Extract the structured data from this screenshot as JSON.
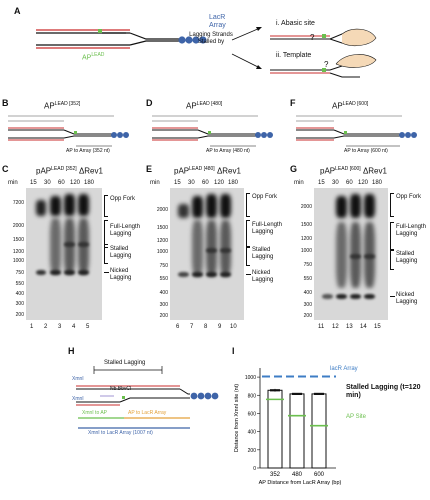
{
  "panelA": {
    "letter": "A",
    "lacR_array": "LacR Array",
    "ap_lead": "AP",
    "ap_lead_sup": "LEAD",
    "stalled_by": "Lagging Strands Stalled by",
    "option1": "i. Abasic site",
    "option2": "ii. Template",
    "q": "?"
  },
  "diagrams": [
    {
      "letter": "B",
      "title": "AP",
      "sup": "LEAD [352]",
      "dist": "AP to Array (352 nt)"
    },
    {
      "letter": "D",
      "title": "AP",
      "sup": "LEAD [480]",
      "dist": "AP to Array (480 nt)"
    },
    {
      "letter": "F",
      "title": "AP",
      "sup": "LEAD [600]",
      "dist": "AP to Array (600 nt)"
    }
  ],
  "gels": [
    {
      "letter": "C",
      "title": "pAP",
      "sup": "LEAD [352]",
      "suffix": "ΔRev1",
      "lanes": [
        "1",
        "2",
        "3",
        "4",
        "5"
      ],
      "markers": [
        "7200",
        "2000",
        "1500",
        "1200",
        "1000",
        "750",
        "550",
        "400",
        "300",
        "200"
      ],
      "annotations": [
        "Opp Fork",
        "Full-Length Lagging",
        "Stalled Lagging",
        "Nicked Lagging"
      ]
    },
    {
      "letter": "E",
      "title": "pAP",
      "sup": "LEAD [480]",
      "suffix": "ΔRev1",
      "lanes": [
        "6",
        "7",
        "8",
        "9",
        "10"
      ],
      "markers": [
        "2000",
        "1500",
        "1200",
        "1000",
        "750",
        "550",
        "400",
        "300",
        "200"
      ],
      "annotations": [
        "Opp Fork",
        "Full-Length Lagging",
        "Stalled Lagging",
        "Nicked Lagging"
      ]
    },
    {
      "letter": "G",
      "title": "pAP",
      "sup": "LEAD [600]",
      "suffix": "ΔRev1",
      "lanes": [
        "11",
        "12",
        "13",
        "14",
        "15"
      ],
      "markers": [
        "2000",
        "1500",
        "1200",
        "1000",
        "750",
        "550",
        "400",
        "300",
        "200"
      ],
      "annotations": [
        "Opp Fork",
        "Full-Length Lagging",
        "Stalled Lagging",
        "Nicked Lagging"
      ]
    }
  ],
  "time": {
    "label": "min",
    "values": [
      "15",
      "30",
      "60",
      "120",
      "180"
    ]
  },
  "panelH": {
    "letter": "H",
    "stalled": "Stalled Lagging",
    "xmnI_top": "XmnI",
    "xmnI_bottom": "XmnI",
    "nb": "Nb.BbvCI",
    "seg1": "XmnI to AP",
    "seg2": "AP to LacR Array",
    "seg3": "XmnI to LacR Array (1007 nt)"
  },
  "chart_data": {
    "type": "bar",
    "title": "",
    "panel": "I",
    "categories": [
      "352",
      "480",
      "600"
    ],
    "values": [
      855,
      815,
      815
    ],
    "error": [
      15,
      10,
      10
    ],
    "ap_site_line": [
      755,
      575,
      465
    ],
    "lacr_array_line": 1007,
    "xlabel": "AP Distance from LacR Array (bp)",
    "ylabel": "Distance from XmnI site (nt)",
    "ylim": [
      0,
      1100
    ],
    "yticks": [
      "0",
      "200",
      "400",
      "600",
      "800",
      "1000"
    ],
    "legend": [
      {
        "name": "lacR Array",
        "color": "#3e7dc5"
      },
      {
        "name": "Stalled Lagging (t=120 min)",
        "color": "#111111"
      },
      {
        "name": "AP Site",
        "color": "#6bbf4e"
      }
    ]
  }
}
